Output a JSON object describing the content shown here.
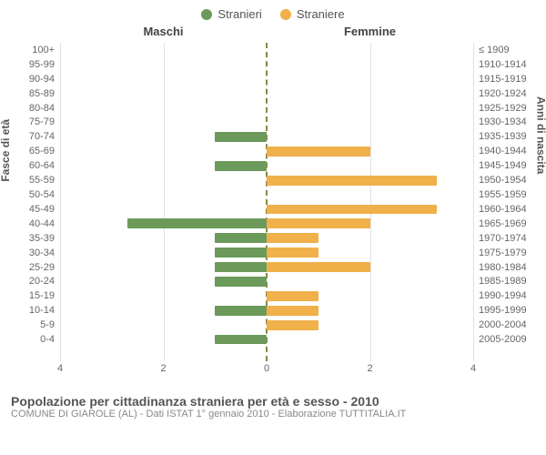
{
  "legend": {
    "male": "Stranieri",
    "female": "Straniere"
  },
  "col_headers": {
    "male": "Maschi",
    "female": "Femmine"
  },
  "axis_titles": {
    "left": "Fasce di età",
    "right": "Anni di nascita"
  },
  "xlim": 4,
  "xticks_left": [
    4,
    2,
    0
  ],
  "xticks_right": [
    0,
    2,
    4
  ],
  "colors": {
    "male": "#6b9a5b",
    "female": "#f0b04a",
    "grid": "#e0e0e0",
    "center_dash": "#888844",
    "bg": "#ffffff"
  },
  "footer": {
    "title": "Popolazione per cittadinanza straniera per età e sesso - 2010",
    "sub": "COMUNE DI GIAROLE (AL) - Dati ISTAT 1° gennaio 2010 - Elaborazione TUTTITALIA.IT"
  },
  "rows": [
    {
      "age": "100+",
      "birth": "≤ 1909",
      "m": 0,
      "f": 0
    },
    {
      "age": "95-99",
      "birth": "1910-1914",
      "m": 0,
      "f": 0
    },
    {
      "age": "90-94",
      "birth": "1915-1919",
      "m": 0,
      "f": 0
    },
    {
      "age": "85-89",
      "birth": "1920-1924",
      "m": 0,
      "f": 0
    },
    {
      "age": "80-84",
      "birth": "1925-1929",
      "m": 0,
      "f": 0
    },
    {
      "age": "75-79",
      "birth": "1930-1934",
      "m": 0,
      "f": 0
    },
    {
      "age": "70-74",
      "birth": "1935-1939",
      "m": 1,
      "f": 0
    },
    {
      "age": "65-69",
      "birth": "1940-1944",
      "m": 0,
      "f": 2
    },
    {
      "age": "60-64",
      "birth": "1945-1949",
      "m": 1,
      "f": 0
    },
    {
      "age": "55-59",
      "birth": "1950-1954",
      "m": 0,
      "f": 3.3
    },
    {
      "age": "50-54",
      "birth": "1955-1959",
      "m": 0,
      "f": 0
    },
    {
      "age": "45-49",
      "birth": "1960-1964",
      "m": 0,
      "f": 3.3
    },
    {
      "age": "40-44",
      "birth": "1965-1969",
      "m": 2.7,
      "f": 2
    },
    {
      "age": "35-39",
      "birth": "1970-1974",
      "m": 1,
      "f": 1
    },
    {
      "age": "30-34",
      "birth": "1975-1979",
      "m": 1,
      "f": 1
    },
    {
      "age": "25-29",
      "birth": "1980-1984",
      "m": 1,
      "f": 2
    },
    {
      "age": "20-24",
      "birth": "1985-1989",
      "m": 1,
      "f": 0
    },
    {
      "age": "15-19",
      "birth": "1990-1994",
      "m": 0,
      "f": 1
    },
    {
      "age": "10-14",
      "birth": "1995-1999",
      "m": 1,
      "f": 1
    },
    {
      "age": "5-9",
      "birth": "2000-2004",
      "m": 0,
      "f": 1
    },
    {
      "age": "0-4",
      "birth": "2005-2009",
      "m": 1,
      "f": 0
    }
  ]
}
